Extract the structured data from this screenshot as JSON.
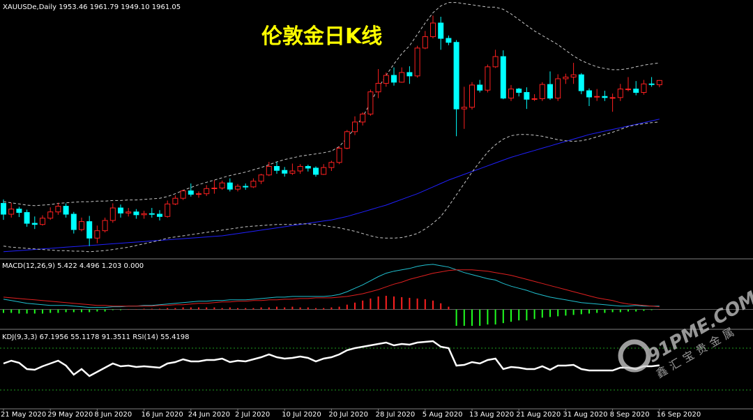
{
  "chart_data": [
    {
      "type": "candlestick",
      "title": "伦敦金日K线",
      "header": "XAUUSDe,Daily  1953.46 1961.79 1949.10 1961.05",
      "watermark": "91PME.COM",
      "watermark_sub": "鑫汇宝贵金属",
      "categories": [
        "21 May 2020",
        null,
        null,
        null,
        null,
        null,
        "29 May 2020",
        null,
        null,
        null,
        null,
        null,
        "8 Jun 2020",
        null,
        null,
        null,
        null,
        null,
        "16 Jun 2020",
        null,
        null,
        null,
        null,
        null,
        "24 Jun 2020",
        null,
        null,
        null,
        null,
        null,
        "2 Jul 2020",
        null,
        null,
        null,
        null,
        null,
        "10 Jul 2020",
        null,
        null,
        null,
        null,
        null,
        "20 Jul 2020",
        null,
        null,
        null,
        null,
        null,
        "28 Jul 2020",
        null,
        null,
        null,
        null,
        null,
        "5 Aug 2020",
        null,
        null,
        null,
        null,
        null,
        "13 Aug 2020",
        null,
        null,
        null,
        null,
        null,
        "21 Aug 2020",
        null,
        null,
        null,
        null,
        null,
        "31 Aug 2020",
        null,
        null,
        null,
        null,
        null,
        "8 Sep 2020",
        null,
        null,
        null,
        null,
        null,
        "16 Sep 2020"
      ],
      "open": [
        1745,
        1726,
        1735,
        1729,
        1710,
        1708,
        1719,
        1730,
        1740,
        1726,
        1699,
        1713,
        1684,
        1697,
        1715,
        1737,
        1728,
        1730,
        1725,
        1727,
        1726,
        1722,
        1744,
        1754,
        1767,
        1761,
        1762,
        1771,
        1772,
        1781,
        1770,
        1775,
        1774,
        1784,
        1795,
        1810,
        1803,
        1798,
        1802,
        1810,
        1807,
        1796,
        1808,
        1817,
        1842,
        1871,
        1888,
        1902,
        1941,
        1956,
        1970,
        1958,
        1975,
        1969,
        2018,
        2038,
        2062,
        2035,
        2028,
        1911,
        1914,
        1953,
        1944,
        1985,
        2003,
        1930,
        1946,
        1940,
        1928,
        1929,
        1954,
        1930,
        1964,
        1967,
        1971,
        1943,
        1932,
        1933,
        1931,
        1931,
        1946,
        1946,
        1940,
        1955,
        1953.46
      ],
      "high": [
        1752,
        1746,
        1739,
        1734,
        1722,
        1724,
        1738,
        1746,
        1745,
        1730,
        1720,
        1723,
        1706,
        1720,
        1745,
        1743,
        1737,
        1735,
        1732,
        1737,
        1733,
        1750,
        1759,
        1769,
        1780,
        1766,
        1777,
        1786,
        1785,
        1789,
        1779,
        1780,
        1789,
        1797,
        1818,
        1818,
        1809,
        1815,
        1814,
        1813,
        1810,
        1814,
        1820,
        1845,
        1874,
        1898,
        1905,
        1945,
        1981,
        1975,
        1984,
        1984,
        1986,
        2022,
        2048,
        2075,
        2073,
        2040,
        2032,
        1950,
        1958,
        1962,
        1989,
        2015,
        2014,
        1953,
        1948,
        1949,
        1937,
        1958,
        1977,
        1972,
        1973,
        1992,
        1974,
        1947,
        1946,
        1943,
        1938,
        1955,
        1967,
        1960,
        1962,
        1967,
        1961.79
      ],
      "low": [
        1716,
        1720,
        1721,
        1704,
        1700,
        1706,
        1716,
        1725,
        1720,
        1692,
        1696,
        1670,
        1675,
        1694,
        1711,
        1720,
        1722,
        1718,
        1718,
        1720,
        1715,
        1720,
        1742,
        1751,
        1757,
        1755,
        1758,
        1762,
        1769,
        1766,
        1766,
        1769,
        1772,
        1779,
        1793,
        1797,
        1792,
        1795,
        1797,
        1801,
        1792,
        1795,
        1802,
        1814,
        1840,
        1865,
        1882,
        1899,
        1930,
        1950,
        1952,
        1957,
        1955,
        1966,
        2016,
        2035,
        2015,
        2023,
        1863,
        1876,
        1910,
        1940,
        1940,
        1983,
        1928,
        1925,
        1933,
        1911,
        1925,
        1925,
        1927,
        1925,
        1955,
        1955,
        1937,
        1916,
        1925,
        1925,
        1906,
        1925,
        1942,
        1935,
        1936,
        1950,
        1949.1
      ],
      "close": [
        1726,
        1735,
        1729,
        1710,
        1708,
        1719,
        1730,
        1740,
        1726,
        1699,
        1713,
        1684,
        1697,
        1715,
        1737,
        1728,
        1730,
        1725,
        1727,
        1726,
        1722,
        1744,
        1754,
        1767,
        1761,
        1762,
        1771,
        1772,
        1781,
        1770,
        1775,
        1774,
        1784,
        1795,
        1810,
        1803,
        1798,
        1802,
        1810,
        1807,
        1796,
        1808,
        1817,
        1842,
        1871,
        1888,
        1902,
        1941,
        1956,
        1970,
        1958,
        1975,
        1969,
        2018,
        2038,
        2062,
        2035,
        2028,
        1911,
        1914,
        1953,
        1944,
        1985,
        2003,
        1930,
        1946,
        1940,
        1928,
        1929,
        1954,
        1930,
        1964,
        1967,
        1971,
        1943,
        1932,
        1933,
        1931,
        1931,
        1946,
        1946,
        1940,
        1955,
        1954,
        1961.05
      ],
      "up_color": "#ff2020",
      "down_color": "#00ffff",
      "ylim": [
        1650,
        2100
      ],
      "lines": [
        {
          "color": "#2020ff",
          "dashed": false,
          "values": [
            1660,
            1661,
            1662,
            1663,
            1664,
            1665,
            1666,
            1667,
            1668,
            1669,
            1670,
            1671,
            1672,
            1673,
            1674,
            1675,
            1676,
            1677,
            1678,
            1679,
            1680,
            1681,
            1682,
            1683,
            1684,
            1685,
            1686,
            1687,
            1688,
            1690,
            1692,
            1694,
            1696,
            1698,
            1700,
            1702,
            1704,
            1706,
            1708,
            1710,
            1712,
            1714,
            1716,
            1719,
            1722,
            1726,
            1730,
            1734,
            1738,
            1742,
            1747,
            1752,
            1757,
            1762,
            1768,
            1774,
            1780,
            1786,
            1791,
            1796,
            1801,
            1806,
            1811,
            1816,
            1821,
            1826,
            1830,
            1834,
            1838,
            1842,
            1846,
            1850,
            1854,
            1858,
            1862,
            1866,
            1869,
            1872,
            1875,
            1878,
            1881,
            1884,
            1887,
            1890,
            1893
          ]
        },
        {
          "color": "#c8c8c8",
          "dashed": true,
          "values": [
            1748,
            1746,
            1744,
            1742,
            1741,
            1742,
            1743,
            1745,
            1746,
            1747,
            1748,
            1748,
            1749,
            1749,
            1750,
            1750,
            1751,
            1751,
            1752,
            1753,
            1754,
            1757,
            1762,
            1768,
            1773,
            1778,
            1782,
            1786,
            1790,
            1794,
            1797,
            1800,
            1804,
            1808,
            1813,
            1818,
            1822,
            1825,
            1828,
            1830,
            1832,
            1834,
            1837,
            1845,
            1860,
            1878,
            1897,
            1922,
            1948,
            1970,
            1990,
            2008,
            2022,
            2042,
            2062,
            2080,
            2092,
            2098,
            2098,
            2096,
            2094,
            2092,
            2090,
            2090,
            2086,
            2078,
            2068,
            2058,
            2048,
            2040,
            2032,
            2024,
            2014,
            2004,
            1996,
            1990,
            1985,
            1982,
            1980,
            1980,
            1982,
            1985,
            1988,
            1990,
            1992
          ]
        },
        {
          "color": "#c8c8c8",
          "dashed": true,
          "values": [
            1670,
            1668,
            1667,
            1666,
            1665,
            1664,
            1663,
            1662,
            1662,
            1661,
            1661,
            1660,
            1661,
            1662,
            1664,
            1666,
            1668,
            1671,
            1674,
            1677,
            1680,
            1684,
            1686,
            1688,
            1690,
            1692,
            1694,
            1696,
            1698,
            1700,
            1702,
            1704,
            1705,
            1706,
            1707,
            1708,
            1708,
            1708,
            1709,
            1709,
            1708,
            1706,
            1704,
            1702,
            1699,
            1696,
            1692,
            1688,
            1685,
            1684,
            1684,
            1685,
            1688,
            1692,
            1700,
            1710,
            1722,
            1740,
            1760,
            1780,
            1800,
            1818,
            1835,
            1848,
            1858,
            1864,
            1866,
            1866,
            1865,
            1863,
            1860,
            1857,
            1855,
            1854,
            1855,
            1858,
            1862,
            1866,
            1870,
            1875,
            1880,
            1883,
            1885,
            1887,
            1888
          ]
        }
      ]
    },
    {
      "type": "macd",
      "label": "MACD(12,26,9) 5.422 4.496 1.203 0.000",
      "ylim": [
        -27,
        71
      ],
      "histogram": {
        "up_color": "#ff2020",
        "down_color": "#20ff20",
        "values": [
          -5,
          -5,
          -6,
          -6,
          -6,
          -6,
          -5,
          -5,
          -4,
          -4,
          -4,
          -4,
          -3,
          -3,
          -1,
          -1,
          0,
          0,
          1,
          1,
          1,
          2,
          2,
          3,
          3,
          3,
          3,
          3,
          2,
          3,
          2,
          2,
          2,
          3,
          3,
          4,
          3,
          4,
          3,
          3,
          2,
          2,
          3,
          4,
          7,
          10,
          13,
          16,
          19,
          20,
          19,
          18,
          17,
          16,
          15,
          13,
          9,
          4,
          -24,
          -24,
          -24,
          -24,
          -22,
          -22,
          -20,
          -18,
          -16,
          -16,
          -14,
          -12,
          -11,
          -10,
          -9,
          -8,
          -7,
          -6,
          -5,
          -5,
          -4,
          -4,
          -3,
          -3,
          -2,
          -1,
          0
        ]
      },
      "lines": [
        {
          "color": "#20c0d0",
          "dashed": false,
          "values": [
            15,
            13,
            11,
            9,
            8,
            7,
            6,
            6,
            6,
            5,
            4,
            3,
            3,
            3,
            4,
            4,
            5,
            5,
            6,
            6,
            7,
            8,
            9,
            10,
            11,
            12,
            12,
            13,
            13,
            14,
            14,
            14,
            15,
            16,
            17,
            18,
            18,
            19,
            19,
            19,
            19,
            19,
            20,
            22,
            26,
            31,
            36,
            42,
            48,
            53,
            56,
            58,
            60,
            63,
            65,
            66,
            64,
            62,
            58,
            54,
            51,
            48,
            45,
            43,
            38,
            34,
            31,
            28,
            24,
            21,
            18,
            16,
            14,
            12,
            10,
            9,
            8,
            7,
            6,
            5,
            5,
            6,
            5,
            5,
            5
          ]
        },
        {
          "color": "#e02020",
          "dashed": false,
          "values": [
            18,
            17,
            16,
            15,
            14,
            13,
            12,
            11,
            10,
            9,
            8,
            7,
            6,
            6,
            5,
            5,
            5,
            5,
            5,
            5,
            6,
            6,
            7,
            7,
            8,
            9,
            9,
            10,
            11,
            11,
            12,
            12,
            13,
            13,
            14,
            14,
            15,
            15,
            16,
            16,
            17,
            17,
            17,
            18,
            19,
            21,
            23,
            26,
            29,
            33,
            37,
            40,
            44,
            47,
            50,
            53,
            55,
            57,
            58,
            58,
            58,
            57,
            56,
            54,
            52,
            50,
            47,
            44,
            41,
            38,
            35,
            32,
            29,
            26,
            23,
            20,
            17,
            15,
            13,
            10,
            8,
            7,
            6,
            5,
            4
          ]
        }
      ]
    },
    {
      "type": "line",
      "label": "KDJ(9,3,3) 67.1956 55.1178 91.3511  RSI(14) 55.4198",
      "ylim": [
        -5,
        105
      ],
      "levels": [
        80,
        20
      ],
      "level_color": "#20a020",
      "lines": [
        {
          "color": "#ffffff",
          "dashed": false,
          "values": [
            58,
            62,
            59,
            50,
            49,
            54,
            58,
            62,
            55,
            42,
            50,
            40,
            46,
            52,
            58,
            54,
            55,
            53,
            54,
            53,
            52,
            58,
            60,
            64,
            61,
            61,
            63,
            63,
            65,
            60,
            62,
            61,
            64,
            67,
            71,
            67,
            65,
            66,
            68,
            66,
            61,
            65,
            67,
            71,
            77,
            80,
            82,
            84,
            86,
            88,
            84,
            86,
            85,
            88,
            89,
            90,
            82,
            80,
            55,
            56,
            60,
            58,
            63,
            65,
            50,
            53,
            52,
            50,
            50,
            54,
            49,
            55,
            55,
            56,
            50,
            48,
            48,
            48,
            48,
            52,
            52,
            50,
            54,
            54,
            55.4
          ]
        }
      ]
    }
  ]
}
